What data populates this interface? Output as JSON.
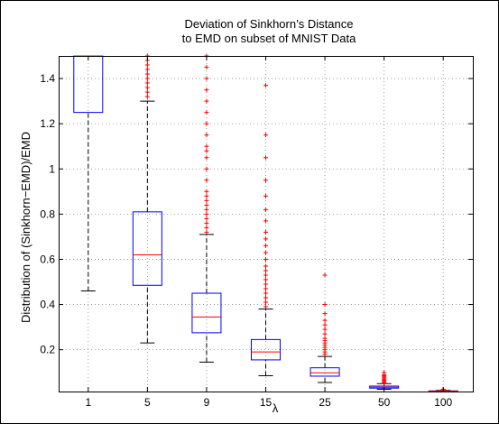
{
  "chart_data": {
    "type": "boxplot",
    "title_lines": [
      "Deviation of Sinkhorn’s Distance",
      "to EMD on subset of MNIST Data"
    ],
    "xlabel": "λ",
    "ylabel": "Distribution of (Sinkhorn−EMD)/EMD",
    "ylim": [
      0.015,
      1.5
    ],
    "yticks": [
      0.2,
      0.4,
      0.6,
      0.8,
      1.0,
      1.2,
      1.4
    ],
    "ytick_labels": [
      "0.2",
      "0.4",
      "0.6",
      "0.8",
      "1",
      "1.2",
      "1.4"
    ],
    "grid": true,
    "categories": [
      "1",
      "5",
      "9",
      "15",
      "25",
      "50",
      "100"
    ],
    "boxes": [
      {
        "label": "1",
        "whisker_low": 0.46,
        "q1": 1.25,
        "median": 1.5,
        "q3": 1.5,
        "whisker_high": 1.5,
        "outliers": []
      },
      {
        "label": "5",
        "whisker_low": 0.23,
        "q1": 0.485,
        "median": 0.62,
        "q3": 0.81,
        "whisker_high": 1.3,
        "outliers": [
          1.32,
          1.34,
          1.36,
          1.38,
          1.4,
          1.42,
          1.44,
          1.46,
          1.48,
          1.5
        ]
      },
      {
        "label": "9",
        "whisker_low": 0.145,
        "q1": 0.275,
        "median": 0.345,
        "q3": 0.45,
        "whisker_high": 0.71,
        "outliers": [
          0.72,
          0.74,
          0.76,
          0.78,
          0.8,
          0.82,
          0.84,
          0.86,
          0.88,
          0.9,
          0.95,
          1.0,
          1.05,
          1.08,
          1.1,
          1.15,
          1.2,
          1.25,
          1.3,
          1.35,
          1.4,
          1.45,
          1.5
        ]
      },
      {
        "label": "15",
        "whisker_low": 0.085,
        "q1": 0.155,
        "median": 0.19,
        "q3": 0.245,
        "whisker_high": 0.38,
        "outliers": [
          0.39,
          0.41,
          0.43,
          0.45,
          0.47,
          0.49,
          0.51,
          0.53,
          0.55,
          0.57,
          0.6,
          0.63,
          0.66,
          0.69,
          0.72,
          0.77,
          0.82,
          0.88,
          0.95,
          1.05,
          1.15,
          1.37
        ]
      },
      {
        "label": "25",
        "whisker_low": 0.055,
        "q1": 0.083,
        "median": 0.098,
        "q3": 0.12,
        "whisker_high": 0.17,
        "outliers": [
          0.18,
          0.19,
          0.2,
          0.21,
          0.22,
          0.23,
          0.24,
          0.25,
          0.27,
          0.29,
          0.31,
          0.33,
          0.36,
          0.4,
          0.53
        ]
      },
      {
        "label": "50",
        "whisker_low": 0.025,
        "q1": 0.03,
        "median": 0.034,
        "q3": 0.039,
        "whisker_high": 0.05,
        "outliers": [
          0.052,
          0.055,
          0.06,
          0.065,
          0.07,
          0.075,
          0.08,
          0.085,
          0.09,
          0.1
        ]
      },
      {
        "label": "100",
        "whisker_low": 0.015,
        "q1": 0.016,
        "median": 0.017,
        "q3": 0.018,
        "whisker_high": 0.02,
        "outliers": [
          0.021,
          0.022,
          0.023,
          0.024,
          0.025
        ]
      }
    ],
    "colors": {
      "box": "#0000ff",
      "median": "#ff0000",
      "whisker": "#000000",
      "outlier": "#ff0000",
      "grid": "#888888",
      "axes": "#000000"
    }
  }
}
